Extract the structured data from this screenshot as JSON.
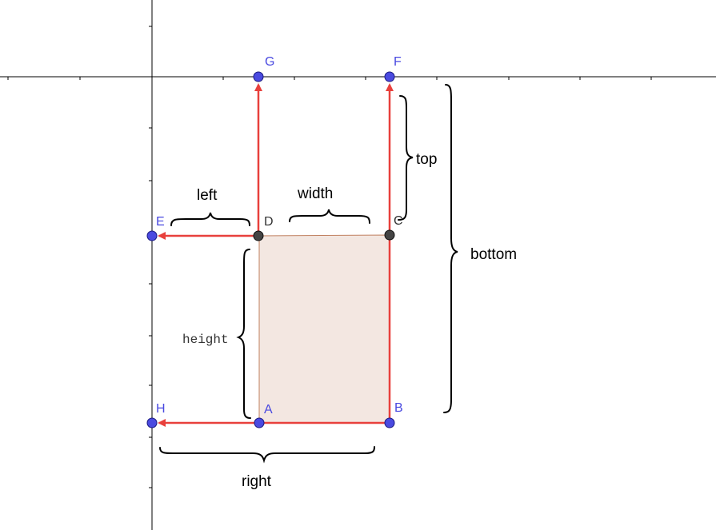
{
  "labels": {
    "left": "left",
    "width": "width",
    "top": "top",
    "bottom": "bottom",
    "height": "height",
    "right": "right"
  },
  "points": {
    "A": "A",
    "B": "B",
    "C": "C",
    "D": "D",
    "E": "E",
    "F": "F",
    "G": "G",
    "H": "H"
  },
  "colors": {
    "arrow": "#e8403c",
    "rect_fill": "#f3e7e1",
    "rect_edge": "#c08060",
    "point_blue": "#4a4ae0",
    "point_dark": "#333333",
    "axis": "#000000"
  }
}
